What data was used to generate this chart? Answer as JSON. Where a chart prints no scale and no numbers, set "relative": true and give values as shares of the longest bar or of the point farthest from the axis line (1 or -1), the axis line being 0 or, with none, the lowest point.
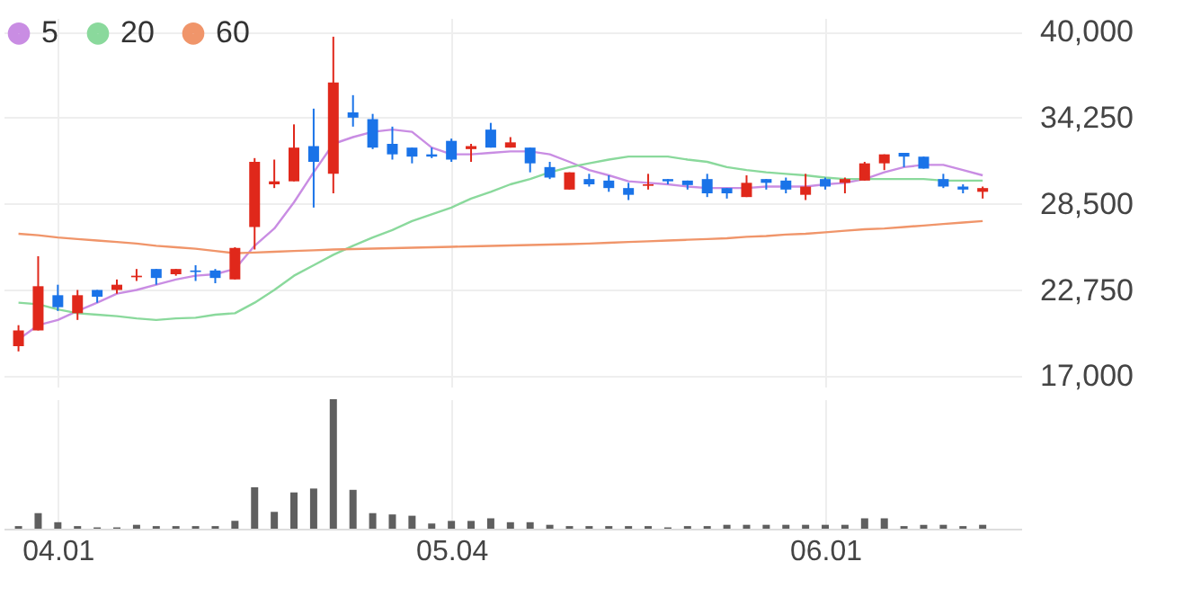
{
  "chart_data": [
    {
      "type": "candlestick",
      "legend": "top left",
      "grid": true,
      "tick_labels": "y",
      "categories": [
        null,
        null,
        "04.01",
        null,
        null,
        null,
        null,
        null,
        null,
        null,
        null,
        null,
        null,
        null,
        null,
        null,
        null,
        null,
        null,
        null,
        null,
        null,
        "05.04",
        null,
        null,
        null,
        null,
        null,
        null,
        null,
        null,
        null,
        null,
        null,
        null,
        null,
        null,
        null,
        null,
        null,
        null,
        "06.01",
        null,
        null,
        null,
        null,
        null,
        null,
        null,
        null
      ],
      "ohlc": [
        [
          19000,
          20400,
          18650,
          20050
        ],
        [
          20050,
          25000,
          20050,
          23000
        ],
        [
          22400,
          23100,
          21350,
          21600
        ],
        [
          21200,
          22750,
          20750,
          22400
        ],
        [
          22750,
          22750,
          21900,
          22300
        ],
        [
          22750,
          23450,
          22500,
          23100
        ],
        [
          23600,
          24150,
          23350,
          23700
        ],
        [
          24150,
          24150,
          23100,
          23550
        ],
        [
          23800,
          24150,
          23700,
          24150
        ],
        [
          24050,
          24400,
          23350,
          23950
        ],
        [
          24050,
          24150,
          23200,
          23550
        ],
        [
          23450,
          25600,
          23450,
          25550
        ],
        [
          26950,
          31550,
          25450,
          31300
        ],
        [
          29800,
          31450,
          29550,
          30000
        ],
        [
          30000,
          33800,
          30000,
          32250
        ],
        [
          32350,
          34850,
          28250,
          31300
        ],
        [
          30500,
          39650,
          29200,
          36600
        ],
        [
          34600,
          35750,
          33650,
          34250
        ],
        [
          34150,
          34500,
          32150,
          32250
        ],
        [
          32500,
          33650,
          31450,
          31800
        ],
        [
          32250,
          32250,
          31200,
          31650
        ],
        [
          31800,
          32250,
          31550,
          31650
        ],
        [
          32700,
          32850,
          31300,
          31450
        ],
        [
          32150,
          32500,
          31300,
          32350
        ],
        [
          33450,
          33900,
          32250,
          32250
        ],
        [
          32250,
          32950,
          32250,
          32600
        ],
        [
          32250,
          32250,
          30600,
          31200
        ],
        [
          30950,
          31300,
          30150,
          30250
        ],
        [
          29450,
          30600,
          29450,
          30600
        ],
        [
          30150,
          30500,
          29650,
          29800
        ],
        [
          30050,
          30400,
          29300,
          29550
        ],
        [
          29550,
          29900,
          28750,
          29100
        ],
        [
          29700,
          30500,
          29450,
          29800
        ],
        [
          30150,
          30150,
          29800,
          30000
        ],
        [
          30050,
          30050,
          29450,
          29750
        ],
        [
          30150,
          30500,
          28950,
          29200
        ],
        [
          29550,
          29550,
          28850,
          29200
        ],
        [
          28950,
          30400,
          28950,
          29900
        ],
        [
          30150,
          30150,
          29450,
          29900
        ],
        [
          30050,
          30250,
          29200,
          29450
        ],
        [
          29100,
          30500,
          28750,
          29650
        ],
        [
          30150,
          30250,
          29450,
          29650
        ],
        [
          29900,
          30250,
          29200,
          30150
        ],
        [
          30050,
          31300,
          30050,
          31200
        ],
        [
          31200,
          31800,
          30750,
          31800
        ],
        [
          31900,
          31900,
          30950,
          31650
        ],
        [
          31650,
          31650,
          30850,
          30850
        ],
        [
          30150,
          30500,
          29550,
          29650
        ],
        [
          29650,
          29800,
          29200,
          29450
        ],
        [
          29300,
          29650,
          28850,
          29550
        ]
      ],
      "colors": [
        "#e0281b",
        "#e0281b",
        "#1a73e8",
        "#e0281b",
        "#1a73e8",
        "#e0281b",
        "#e0281b",
        "#1a73e8",
        "#e0281b",
        "#1a73e8",
        "#1a73e8",
        "#e0281b",
        "#e0281b",
        "#e0281b",
        "#e0281b",
        "#1a73e8",
        "#e0281b",
        "#1a73e8",
        "#1a73e8",
        "#1a73e8",
        "#1a73e8",
        "#1a73e8",
        "#1a73e8",
        "#e0281b",
        "#1a73e8",
        "#e0281b",
        "#1a73e8",
        "#1a73e8",
        "#e0281b",
        "#1a73e8",
        "#1a73e8",
        "#1a73e8",
        "#e0281b",
        "#1a73e8",
        "#1a73e8",
        "#1a73e8",
        "#1a73e8",
        "#e0281b",
        "#1a73e8",
        "#1a73e8",
        "#e0281b",
        "#1a73e8",
        "#e0281b",
        "#e0281b",
        "#e0281b",
        "#1a73e8",
        "#1a73e8",
        "#1a73e8",
        "#1a73e8",
        "#e0281b"
      ],
      "series": [
        {
          "name": "5",
          "type": "line",
          "color": "#c98de3",
          "values": [
            19450,
            20400,
            20750,
            21350,
            21900,
            22500,
            22750,
            23100,
            23450,
            23700,
            23800,
            24150,
            25700,
            26850,
            28600,
            30600,
            32500,
            32950,
            33300,
            33450,
            33300,
            32250,
            31800,
            31800,
            31900,
            32000,
            32000,
            31800,
            31300,
            30750,
            30400,
            30000,
            29900,
            29800,
            29650,
            29550,
            29550,
            29550,
            29650,
            29650,
            29650,
            29800,
            29900,
            30150,
            30600,
            30950,
            31100,
            31100,
            30750,
            30400
          ]
        },
        {
          "name": "20",
          "type": "line",
          "color": "#8ad99c",
          "values": [
            21900,
            21800,
            21450,
            21200,
            21100,
            21000,
            20850,
            20750,
            20850,
            20900,
            21100,
            21200,
            21900,
            22750,
            23700,
            24400,
            25100,
            25700,
            26250,
            26750,
            27350,
            27800,
            28250,
            28850,
            29300,
            29800,
            30150,
            30600,
            30950,
            31200,
            31450,
            31650,
            31650,
            31650,
            31450,
            31300,
            30950,
            30750,
            30600,
            30500,
            30400,
            30250,
            30150,
            30150,
            30150,
            30150,
            30150,
            30050,
            30050,
            30050
          ]
        },
        {
          "name": "60",
          "type": "line",
          "color": "#f0956a",
          "values": [
            26500,
            26400,
            26250,
            26150,
            26050,
            25950,
            25850,
            25700,
            25600,
            25500,
            25350,
            25200,
            25250,
            25300,
            25350,
            25400,
            25450,
            25480,
            25510,
            25540,
            25570,
            25600,
            25630,
            25660,
            25690,
            25720,
            25750,
            25780,
            25810,
            25850,
            25900,
            25950,
            26000,
            26050,
            26100,
            26150,
            26200,
            26300,
            26350,
            26450,
            26500,
            26600,
            26700,
            26800,
            26850,
            26950,
            27050,
            27150,
            27250,
            27350
          ]
        }
      ],
      "ylim": [
        16300,
        40900
      ],
      "yticks": [
        {
          "value": 17000,
          "label": "17,000"
        },
        {
          "value": 22750,
          "label": "22,750"
        },
        {
          "value": 28500,
          "label": "28,500"
        },
        {
          "value": 34250,
          "label": "34,250"
        },
        {
          "value": 40000,
          "label": "40,000"
        }
      ]
    },
    {
      "type": "bar",
      "relative": true,
      "grid": "x",
      "tick_labels": "x",
      "color": "#5f5f5f",
      "categories": [
        null,
        null,
        "04.01",
        null,
        null,
        null,
        null,
        null,
        null,
        null,
        null,
        null,
        null,
        null,
        null,
        null,
        null,
        null,
        null,
        null,
        null,
        null,
        "05.04",
        null,
        null,
        null,
        null,
        null,
        null,
        null,
        null,
        null,
        null,
        null,
        null,
        null,
        null,
        null,
        null,
        null,
        null,
        "06.01",
        null,
        null,
        null,
        null,
        null,
        null,
        null,
        null
      ],
      "values": [
        0.02,
        0.12,
        0.05,
        0.02,
        0.01,
        0.01,
        0.03,
        0.02,
        0.02,
        0.02,
        0.02,
        0.06,
        0.32,
        0.13,
        0.28,
        0.31,
        1,
        0.3,
        0.12,
        0.11,
        0.1,
        0.04,
        0.06,
        0.06,
        0.08,
        0.05,
        0.05,
        0.03,
        0.02,
        0.02,
        0.02,
        0.02,
        0.02,
        0.01,
        0.02,
        0.02,
        0.03,
        0.03,
        0.03,
        0.03,
        0.03,
        0.03,
        0.03,
        0.08,
        0.08,
        0.02,
        0.03,
        0.03,
        0.02,
        0.03
      ]
    }
  ]
}
